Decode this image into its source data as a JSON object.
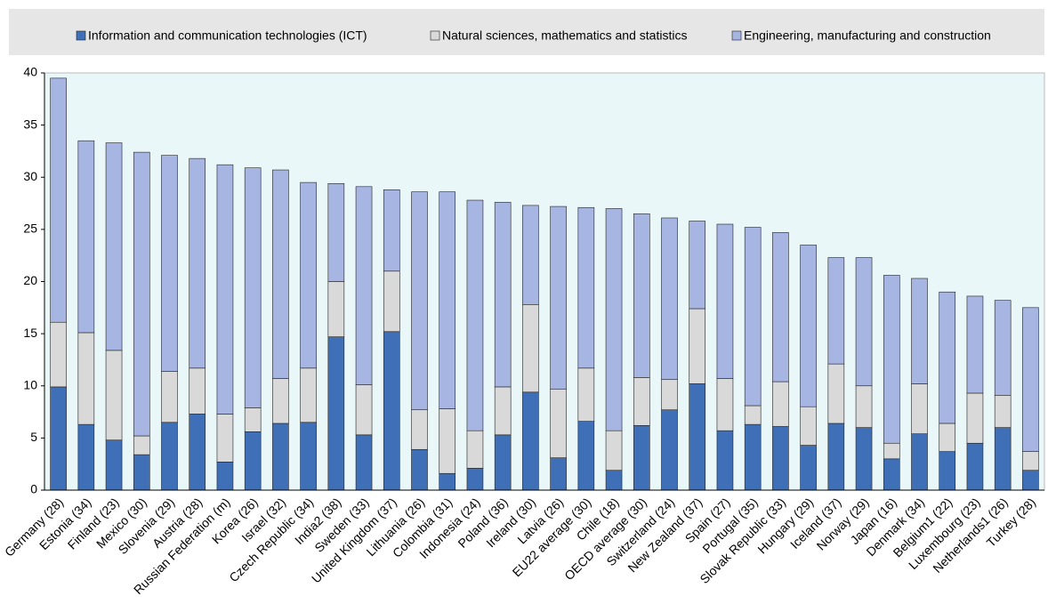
{
  "chart_data": {
    "type": "stacked_bar",
    "categories": [
      "Germany (28)",
      "Estonia (34)",
      "Finland (23)",
      "Mexico (30)",
      "Slovenia (29)",
      "Austria (28)",
      "Russian Federation (m)",
      "Korea (26)",
      "Israel (32)",
      "Czech Republic (34)",
      "India2 (38)",
      "Sweden (33)",
      "United Kingdom (37)",
      "Lithuania (26)",
      "Colombia (31)",
      "Indonesia (24)",
      "Poland (36)",
      "Ireland (30)",
      "Latvia (26)",
      "EU22 average (30)",
      "Chile (18)",
      "OECD average (30)",
      "Switzerland (24)",
      "New Zealand (37)",
      "Spain (27)",
      "Portugal (35)",
      "Slovak Republic (33)",
      "Hungary (29)",
      "Iceland (37)",
      "Norway (29)",
      "Japan (16)",
      "Denmark (34)",
      "Belgium1 (22)",
      "Luxembourg (23)",
      "Netherlands1 (26)",
      "Turkey (28)"
    ],
    "series": [
      {
        "name": "Information and communication technologies  (ICT)",
        "color": "#3f6fb6",
        "values": [
          9.9,
          6.3,
          4.8,
          3.4,
          6.5,
          7.3,
          2.7,
          5.6,
          6.4,
          6.5,
          14.7,
          5.3,
          15.2,
          3.9,
          1.6,
          2.1,
          5.3,
          9.4,
          3.1,
          6.6,
          1.9,
          6.2,
          7.7,
          10.2,
          5.7,
          6.3,
          6.1,
          4.3,
          6.4,
          6.0,
          3.0,
          5.4,
          3.7,
          4.5,
          6.0,
          1.9
        ]
      },
      {
        "name": "Natural sciences, mathematics and statistics",
        "color": "#d9d9d9",
        "values": [
          6.2,
          8.8,
          8.6,
          1.8,
          4.9,
          4.4,
          4.6,
          2.3,
          4.3,
          5.2,
          5.3,
          4.8,
          5.8,
          3.8,
          6.2,
          3.6,
          4.6,
          8.4,
          6.6,
          5.1,
          3.8,
          4.6,
          2.9,
          7.2,
          5.0,
          1.8,
          4.3,
          3.7,
          5.7,
          4.0,
          1.5,
          4.8,
          2.7,
          4.8,
          3.1,
          1.8
        ]
      },
      {
        "name": "Engineering, manufacturing and construction",
        "color": "#a7b5e3",
        "values": [
          23.4,
          18.4,
          19.9,
          27.2,
          20.7,
          20.1,
          23.9,
          23.0,
          20.0,
          17.8,
          9.4,
          19.0,
          7.8,
          20.9,
          20.8,
          22.1,
          17.7,
          9.5,
          17.5,
          15.4,
          21.3,
          15.7,
          15.5,
          8.4,
          14.8,
          17.1,
          14.3,
          15.5,
          10.2,
          12.3,
          16.1,
          10.1,
          12.6,
          9.3,
          9.1,
          13.8
        ]
      }
    ],
    "ylim": [
      0,
      40
    ],
    "yticks": [
      0,
      5,
      10,
      15,
      20,
      25,
      30,
      35,
      40
    ]
  }
}
